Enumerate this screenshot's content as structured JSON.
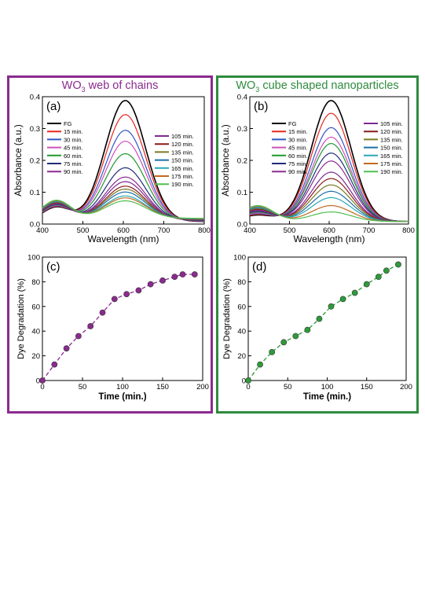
{
  "panels": [
    {
      "title_prefix": "WO",
      "title_sub": "3",
      "title_suffix": " web of chains",
      "color": "#8B2A8F"
    },
    {
      "title_prefix": "WO",
      "title_sub": "3",
      "title_suffix": " cube shaped nanoparticles",
      "color": "#2E8B3E"
    }
  ],
  "chart_data": [
    {
      "id": "a",
      "type": "line",
      "panel_label": "(a)",
      "xlabel": "Wavelength (nm)",
      "ylabel": "Absorbance (a.u.)",
      "xlim": [
        400,
        800
      ],
      "ylim": [
        0,
        0.4
      ],
      "xticks": [
        400,
        500,
        600,
        700,
        800
      ],
      "yticks": [
        0.0,
        0.1,
        0.2,
        0.3,
        0.4
      ],
      "legend_left": [
        "FG",
        "15 min.",
        "30 min.",
        "45 min.",
        "60 min.",
        "75 min.",
        "90 min."
      ],
      "legend_right": [
        "105 min.",
        "120 min.",
        "135 min.",
        "150 min.",
        "165 min.",
        "175 min.",
        "190 min."
      ],
      "series": [
        {
          "name": "FG",
          "peak": 0.38,
          "color": "#000000"
        },
        {
          "name": "15 min.",
          "peak": 0.335,
          "color": "#E8261F"
        },
        {
          "name": "30 min.",
          "peak": 0.285,
          "color": "#2F56C7"
        },
        {
          "name": "45 min.",
          "peak": 0.25,
          "color": "#D050B8"
        },
        {
          "name": "60 min.",
          "peak": 0.21,
          "color": "#1E9A2E"
        },
        {
          "name": "75 min.",
          "peak": 0.165,
          "color": "#1F2D7A"
        },
        {
          "name": "90 min.",
          "peak": 0.135,
          "color": "#8B2A8F"
        },
        {
          "name": "105 min.",
          "peak": 0.12,
          "color": "#7B2A90"
        },
        {
          "name": "120 min.",
          "peak": 0.105,
          "color": "#8B1A1A"
        },
        {
          "name": "135 min.",
          "peak": 0.095,
          "color": "#7A7A22"
        },
        {
          "name": "150 min.",
          "peak": 0.085,
          "color": "#1F6FA8"
        },
        {
          "name": "165 min.",
          "peak": 0.072,
          "color": "#2AA7B5"
        },
        {
          "name": "175 min.",
          "peak": 0.065,
          "color": "#C06A1E"
        },
        {
          "name": "190 min.",
          "peak": 0.055,
          "color": "#4FBF4F"
        }
      ]
    },
    {
      "id": "b",
      "type": "line",
      "panel_label": "(b)",
      "xlabel": "Wavelength (nm)",
      "ylabel": "Absorbance (a.u.)",
      "xlim": [
        400,
        800
      ],
      "ylim": [
        0,
        0.4
      ],
      "xticks": [
        400,
        500,
        600,
        700,
        800
      ],
      "yticks": [
        0.0,
        0.1,
        0.2,
        0.3,
        0.4
      ],
      "legend_left": [
        "FG",
        "15 min.",
        "30 min.",
        "45 min.",
        "60 min.",
        "75 min.",
        "90 min."
      ],
      "legend_right": [
        "105 min.",
        "120 min.",
        "135 min.",
        "150 min.",
        "165 min.",
        "175 min.",
        "190 min."
      ],
      "series": [
        {
          "name": "FG",
          "peak": 0.38,
          "color": "#000000"
        },
        {
          "name": "15 min.",
          "peak": 0.34,
          "color": "#E8261F"
        },
        {
          "name": "30 min.",
          "peak": 0.295,
          "color": "#2F56C7"
        },
        {
          "name": "45 min.",
          "peak": 0.265,
          "color": "#D050B8"
        },
        {
          "name": "60 min.",
          "peak": 0.245,
          "color": "#1E9A2E"
        },
        {
          "name": "75 min.",
          "peak": 0.215,
          "color": "#1F2D7A"
        },
        {
          "name": "90 min.",
          "peak": 0.19,
          "color": "#8B2A8F"
        },
        {
          "name": "105 min.",
          "peak": 0.155,
          "color": "#7B2A90"
        },
        {
          "name": "120 min.",
          "peak": 0.135,
          "color": "#8B1A1A"
        },
        {
          "name": "135 min.",
          "peak": 0.115,
          "color": "#7A7A22"
        },
        {
          "name": "150 min.",
          "peak": 0.095,
          "color": "#1F6FA8"
        },
        {
          "name": "165 min.",
          "peak": 0.075,
          "color": "#2AA7B5"
        },
        {
          "name": "175 min.",
          "peak": 0.05,
          "color": "#C06A1E"
        },
        {
          "name": "190 min.",
          "peak": 0.03,
          "color": "#4FBF4F"
        }
      ]
    },
    {
      "id": "c",
      "type": "line",
      "panel_label": "(c)",
      "xlabel": "Time (min.)",
      "ylabel": "Dye Degradation (%)",
      "xlim": [
        0,
        200
      ],
      "ylim": [
        0,
        100
      ],
      "xticks": [
        0,
        50,
        100,
        150,
        200
      ],
      "yticks": [
        0,
        20,
        40,
        60,
        80,
        100
      ],
      "marker_color": "#8B2A8F",
      "x": [
        0,
        15,
        30,
        45,
        60,
        75,
        90,
        105,
        120,
        135,
        150,
        165,
        175,
        190
      ],
      "y": [
        0,
        13,
        26,
        36,
        44,
        55,
        66,
        70,
        73,
        78,
        81,
        84,
        86,
        86
      ]
    },
    {
      "id": "d",
      "type": "line",
      "panel_label": "(d)",
      "xlabel": "Time (min.)",
      "ylabel": "Dye Degradation (%)",
      "xlim": [
        0,
        200
      ],
      "ylim": [
        0,
        100
      ],
      "xticks": [
        0,
        50,
        100,
        150,
        200
      ],
      "yticks": [
        0,
        20,
        40,
        60,
        80,
        100
      ],
      "marker_color": "#2E9A3A",
      "x": [
        0,
        15,
        30,
        45,
        60,
        75,
        90,
        105,
        120,
        135,
        150,
        165,
        175,
        190
      ],
      "y": [
        0,
        13,
        23,
        31,
        36,
        41,
        50,
        60,
        66,
        71,
        78,
        84,
        89,
        94
      ]
    }
  ]
}
